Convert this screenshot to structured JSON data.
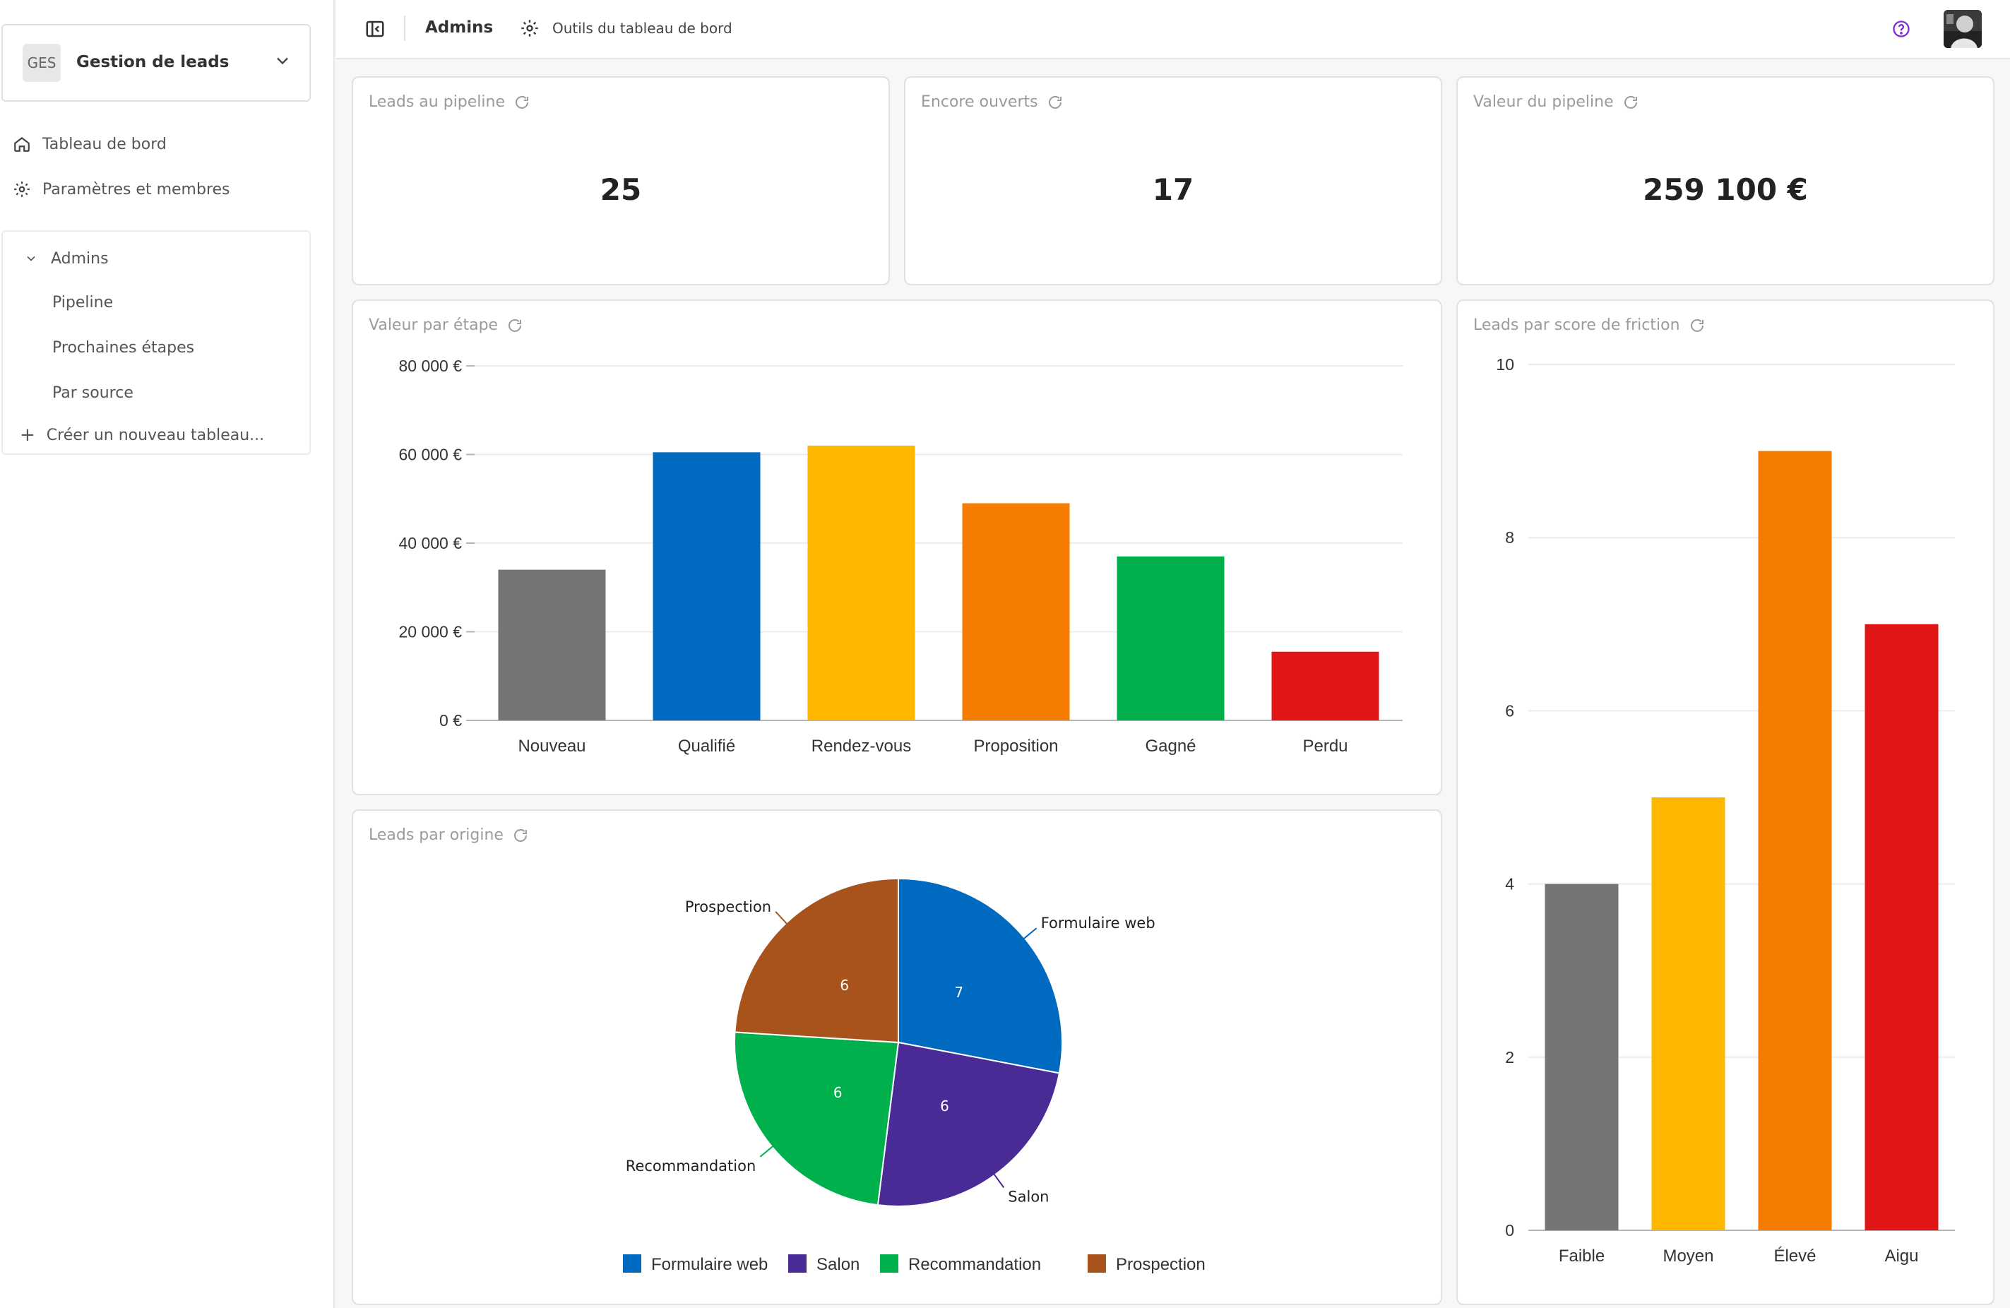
{
  "workspace": {
    "avatar": "GES",
    "name": "Gestion de leads"
  },
  "sidebar": {
    "nav": [
      {
        "label": "Tableau de bord",
        "icon": "home-icon"
      },
      {
        "label": "Paramètres et membres",
        "icon": "gear-icon"
      }
    ],
    "boards_group": "Admins",
    "boards": [
      "Pipeline",
      "Prochaines étapes",
      "Par source"
    ],
    "new_board": "Créer un nouveau tableau..."
  },
  "header": {
    "title": "Admins",
    "tools": "Outils du tableau de bord"
  },
  "kpis": [
    {
      "title": "Leads au pipeline",
      "value": "25"
    },
    {
      "title": "Encore ouverts",
      "value": "17"
    },
    {
      "title": "Valeur du pipeline",
      "value": "259 100 €"
    }
  ],
  "cards": {
    "value_by_stage": "Valeur par étape",
    "leads_by_origin": "Leads par origine",
    "leads_by_friction": "Leads par score de friction"
  },
  "chart_data": [
    {
      "type": "bar",
      "title": "Valeur par étape",
      "categories": [
        "Nouveau",
        "Qualifié",
        "Rendez-vous",
        "Proposition",
        "Gagné",
        "Perdu"
      ],
      "values": [
        34000,
        60500,
        62000,
        49000,
        37000,
        15500
      ],
      "colors": [
        "#757575",
        "#0069c0",
        "#ffb700",
        "#f57c00",
        "#00b04c",
        "#e11717"
      ],
      "ylim": [
        0,
        80000
      ],
      "yticks": [
        0,
        20000,
        40000,
        60000,
        80000
      ],
      "ytick_labels": [
        "0 €",
        "20 000 €",
        "40 000 €",
        "60 000 €",
        "80 000 €"
      ],
      "grid": true
    },
    {
      "type": "pie",
      "title": "Leads par origine",
      "labels": [
        "Formulaire web",
        "Salon",
        "Recommandation",
        "Prospection"
      ],
      "values": [
        7,
        6,
        6,
        6
      ],
      "colors": [
        "#0069c0",
        "#4a2b96",
        "#00b04c",
        "#a8531c"
      ],
      "legend": "bottom"
    },
    {
      "type": "bar",
      "title": "Leads par score de friction",
      "categories": [
        "Faible",
        "Moyen",
        "Élevé",
        "Aigu"
      ],
      "values": [
        4,
        5,
        9,
        7
      ],
      "colors": [
        "#757575",
        "#ffb700",
        "#f57c00",
        "#e11717"
      ],
      "ylim": [
        0,
        10
      ],
      "yticks": [
        0,
        2,
        4,
        6,
        8,
        10
      ],
      "ytick_labels": [
        "0",
        "2",
        "4",
        "6",
        "8",
        "10"
      ],
      "grid": true
    }
  ]
}
